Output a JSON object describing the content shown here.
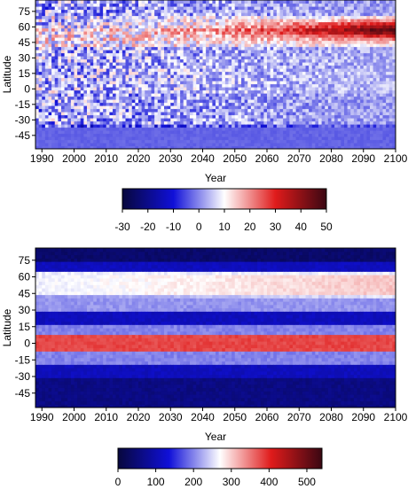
{
  "chart_data": [
    {
      "type": "heatmap",
      "title": "",
      "xlabel": "Year",
      "ylabel": "Latitude",
      "xlim": [
        1988,
        2100
      ],
      "ylim": [
        -58,
        86
      ],
      "x_ticks": [
        1990,
        2000,
        2010,
        2020,
        2030,
        2040,
        2050,
        2060,
        2070,
        2080,
        2090,
        2100
      ],
      "y_ticks": [
        75,
        60,
        45,
        30,
        15,
        0,
        -15,
        -30,
        -45
      ],
      "colorbar": {
        "ticks": [
          -30,
          -20,
          -10,
          0,
          10,
          20,
          30,
          40,
          50
        ],
        "range": [
          -30,
          50
        ],
        "colors": [
          "#07073d",
          "#1010d8",
          "#ffffff",
          "#e01b1b",
          "#3a0712"
        ]
      },
      "bands": [
        {
          "lat": [
            72,
            86
          ],
          "value": 2
        },
        {
          "lat": [
            60,
            72
          ],
          "value": 6
        },
        {
          "lat": [
            40,
            60
          ],
          "value": 10
        },
        {
          "lat": [
            20,
            40
          ],
          "value": 3
        },
        {
          "lat": [
            -5,
            20
          ],
          "value": 4
        },
        {
          "lat": [
            -35,
            -5
          ],
          "value": 2
        },
        {
          "lat": [
            -58,
            -35
          ],
          "value": -4
        }
      ],
      "trend_note": "late-century positive anomalies near 55-65N reach about 40"
    },
    {
      "type": "heatmap",
      "title": "",
      "xlabel": "Year",
      "ylabel": "Latitude",
      "xlim": [
        1988,
        2100
      ],
      "ylim": [
        -58,
        86
      ],
      "x_ticks": [
        1990,
        2000,
        2010,
        2020,
        2030,
        2040,
        2050,
        2060,
        2070,
        2080,
        2090,
        2100
      ],
      "y_ticks": [
        75,
        60,
        45,
        30,
        15,
        0,
        -15,
        -30,
        -45
      ],
      "colorbar": {
        "ticks": [
          0,
          100,
          200,
          300,
          400,
          500
        ],
        "range": [
          0,
          540
        ],
        "colors": [
          "#07073d",
          "#1010d8",
          "#ffffff",
          "#e01b1b",
          "#3a0712"
        ]
      },
      "bands": [
        {
          "lat": [
            74,
            86
          ],
          "value": 40
        },
        {
          "lat": [
            64,
            74
          ],
          "value": 110
        },
        {
          "lat": [
            44,
            64
          ],
          "value": 260
        },
        {
          "lat": [
            30,
            44
          ],
          "value": 210
        },
        {
          "lat": [
            18,
            30
          ],
          "value": 110
        },
        {
          "lat": [
            8,
            18
          ],
          "value": 200
        },
        {
          "lat": [
            -8,
            8
          ],
          "value": 380
        },
        {
          "lat": [
            -20,
            -8
          ],
          "value": 200
        },
        {
          "lat": [
            -32,
            -20
          ],
          "value": 110
        },
        {
          "lat": [
            -58,
            -32
          ],
          "value": 60
        }
      ]
    }
  ]
}
